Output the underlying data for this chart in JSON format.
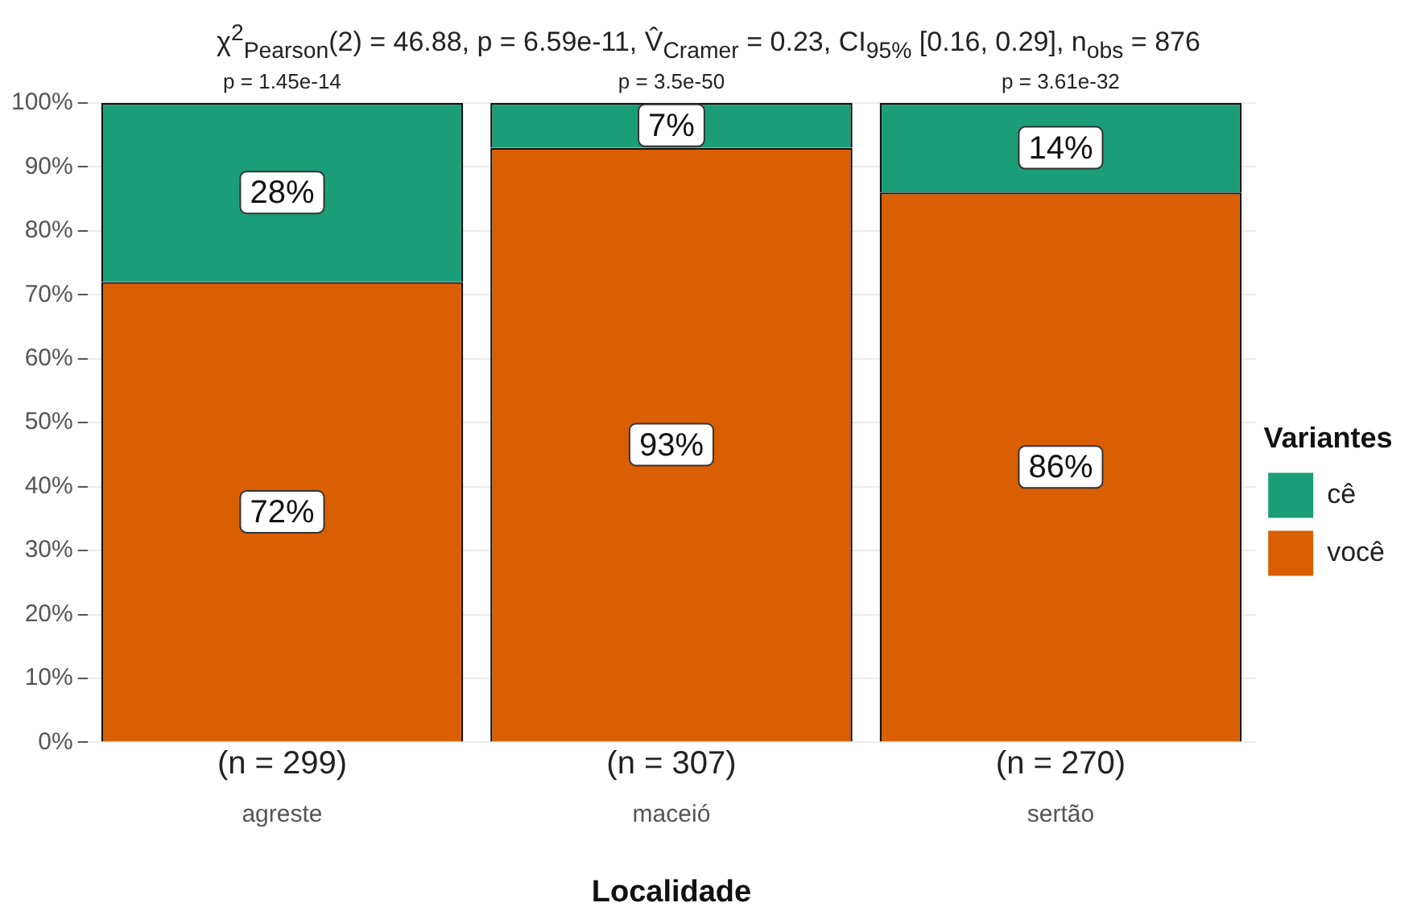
{
  "chart_data": {
    "type": "bar",
    "stacked": true,
    "title": "χ$^{2}$$_{Pearson}$(2) = 46.88, p = 6.59e-11, V̂$_{Cramer}$ = 0.23, CI$_{95%}$ [0.16, 0.29], n$_{obs}$ = 876",
    "xlabel": "Localidade",
    "legend_title": "Variantes",
    "legend": "right",
    "grid": true,
    "categories": [
      "agreste",
      "maceió",
      "sertão"
    ],
    "series": [
      {
        "name": "você",
        "color": "#d95f02",
        "values": [
          72,
          93,
          86
        ],
        "value_labels": [
          "72%",
          "93%",
          "86%"
        ]
      },
      {
        "name": "cê",
        "color": "#1b9e77",
        "values": [
          28,
          7,
          14
        ],
        "value_labels": [
          "28%",
          "7%",
          "14%"
        ]
      }
    ],
    "ylim": [
      0,
      100
    ],
    "yticks": [
      {
        "value": 0,
        "label": "0%"
      },
      {
        "value": 10,
        "label": "10%"
      },
      {
        "value": 20,
        "label": "20%"
      },
      {
        "value": 30,
        "label": "30%"
      },
      {
        "value": 40,
        "label": "40%"
      },
      {
        "value": 50,
        "label": "50%"
      },
      {
        "value": 60,
        "label": "60%"
      },
      {
        "value": 70,
        "label": "70%"
      },
      {
        "value": 80,
        "label": "80%"
      },
      {
        "value": 90,
        "label": "90%"
      },
      {
        "value": 100,
        "label": "100%"
      }
    ],
    "annotations": [
      {
        "text": "p = 1.45e-14",
        "x": "agreste",
        "y": 100
      },
      {
        "text": "p = 3.5e-50",
        "x": "maceió",
        "y": 100
      },
      {
        "text": "p = 3.61e-32",
        "x": "sertão",
        "y": 100
      },
      "(n = 299)",
      "(n = 307)",
      "(n = 270)"
    ]
  }
}
